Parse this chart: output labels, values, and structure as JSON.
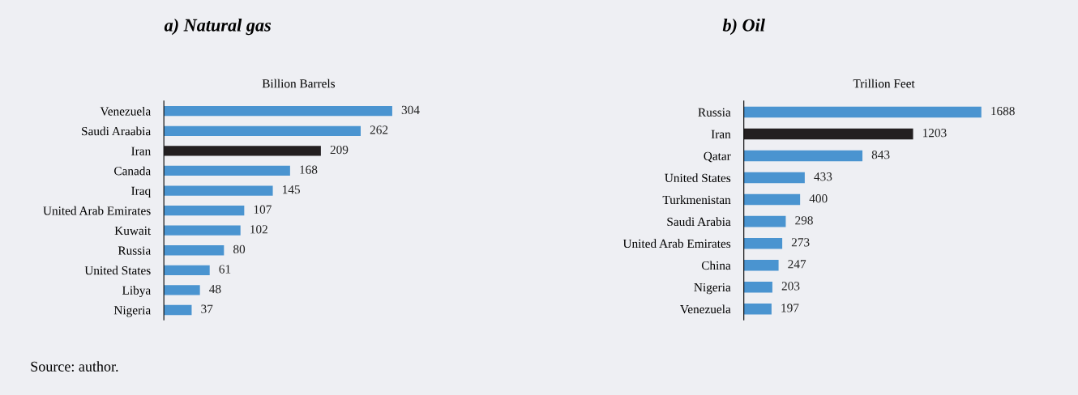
{
  "chart_data": [
    {
      "type": "bar",
      "orientation": "horizontal",
      "title": "a) Natural gas",
      "xlabel": "Billion Barrels",
      "categories": [
        "Venezuela",
        "Saudi Araabia",
        "Iran",
        "Canada",
        "Iraq",
        "United Arab Emirates",
        "Kuwait",
        "Russia",
        "United States",
        "Libya",
        "Nigeria"
      ],
      "values": [
        304,
        262,
        209,
        168,
        145,
        107,
        102,
        80,
        61,
        48,
        37
      ],
      "colors": [
        "#4a94d0",
        "#4a94d0",
        "#231f20",
        "#4a94d0",
        "#4a94d0",
        "#4a94d0",
        "#4a94d0",
        "#4a94d0",
        "#4a94d0",
        "#4a94d0",
        "#4a94d0"
      ],
      "data_labels": true,
      "tick_labels": "y",
      "grid": false,
      "legend": false,
      "annotations": [
        "Source: author."
      ]
    },
    {
      "type": "bar",
      "orientation": "horizontal",
      "title": "b) Oil",
      "xlabel": "Trillion Feet",
      "categories": [
        "Russia",
        "Iran",
        "Qatar",
        "United States",
        "Turkmenistan",
        "Saudi Arabia",
        "United Arab Emirates",
        "China",
        "Nigeria",
        "Venezuela"
      ],
      "values": [
        1688,
        1203,
        843,
        433,
        400,
        298,
        273,
        247,
        203,
        197
      ],
      "colors": [
        "#4a94d0",
        "#231f20",
        "#4a94d0",
        "#4a94d0",
        "#4a94d0",
        "#4a94d0",
        "#4a94d0",
        "#4a94d0",
        "#4a94d0",
        "#4a94d0"
      ],
      "data_labels": true,
      "tick_labels": "y",
      "grid": false,
      "legend": false
    }
  ]
}
